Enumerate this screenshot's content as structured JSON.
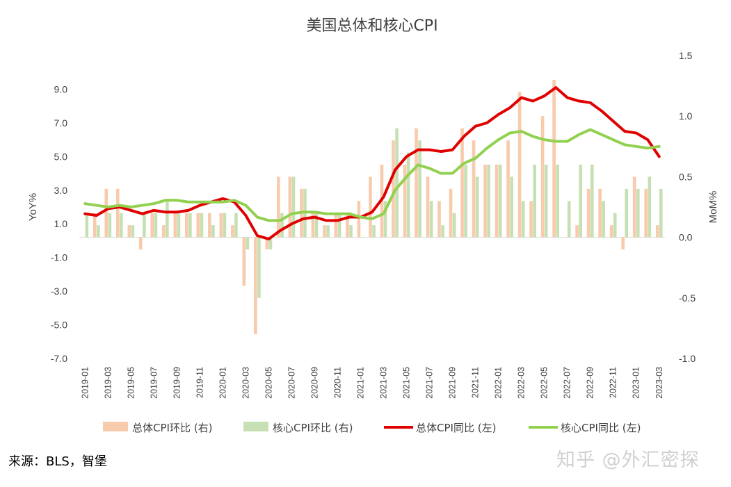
{
  "chart_data": {
    "type": "bar",
    "title": "美国总体和核心CPI",
    "ylabel": "YoY%",
    "y2label": "MoM%",
    "ylim": [
      -7,
      11
    ],
    "y2lim": [
      -1,
      1.5
    ],
    "yticks": [
      "9.0",
      "7.0",
      "5.0",
      "3.0",
      "1.0",
      "-1.0",
      "-3.0",
      "-5.0",
      "-7.0"
    ],
    "y2ticks": [
      "1.5",
      "1.0",
      "0.5",
      "0.0",
      "-0.5",
      "-1.0"
    ],
    "x": [
      "2019-01",
      "2019-02",
      "2019-03",
      "2019-04",
      "2019-05",
      "2019-06",
      "2019-07",
      "2019-08",
      "2019-09",
      "2019-10",
      "2019-11",
      "2019-12",
      "2020-01",
      "2020-02",
      "2020-03",
      "2020-04",
      "2020-05",
      "2020-06",
      "2020-07",
      "2020-08",
      "2020-09",
      "2020-10",
      "2020-11",
      "2020-12",
      "2021-01",
      "2021-02",
      "2021-03",
      "2021-04",
      "2021-05",
      "2021-06",
      "2021-07",
      "2021-08",
      "2021-09",
      "2021-10",
      "2021-11",
      "2021-12",
      "2022-01",
      "2022-02",
      "2022-03",
      "2022-04",
      "2022-05",
      "2022-06",
      "2022-07",
      "2022-08",
      "2022-09",
      "2022-10",
      "2022-11",
      "2022-12",
      "2023-01",
      "2023-02",
      "2023-03"
    ],
    "xtick_labels": [
      "2019-01",
      "2019-03",
      "2019-05",
      "2019-07",
      "2019-09",
      "2019-11",
      "2020-01",
      "2020-03",
      "2020-05",
      "2020-07",
      "2020-09",
      "2020-11",
      "2021-01",
      "2021-03",
      "2021-05",
      "2021-07",
      "2021-09",
      "2021-11",
      "2022-01",
      "2022-03",
      "2022-05",
      "2022-07",
      "2022-09",
      "2022-11",
      "2023-01",
      "2023-03"
    ],
    "series": [
      {
        "name": "总体CPI环比 (右)",
        "kind": "bar",
        "axis": "right",
        "color": "#f8cbad",
        "values": [
          0.0,
          0.2,
          0.4,
          0.4,
          0.1,
          -0.1,
          0.2,
          0.1,
          0.2,
          0.2,
          0.2,
          0.2,
          0.2,
          0.1,
          -0.4,
          -0.8,
          -0.1,
          0.5,
          0.5,
          0.4,
          0.2,
          0.1,
          0.2,
          0.2,
          0.3,
          0.5,
          0.6,
          0.8,
          0.6,
          0.9,
          0.5,
          0.3,
          0.4,
          0.9,
          0.8,
          0.6,
          0.6,
          0.8,
          1.2,
          0.3,
          1.0,
          1.3,
          0.0,
          0.1,
          0.4,
          0.4,
          0.1,
          -0.1,
          0.5,
          0.4,
          0.1
        ]
      },
      {
        "name": "核心CPI环比 (右)",
        "kind": "bar",
        "axis": "right",
        "color": "#c6e0b4",
        "values": [
          0.2,
          0.1,
          0.2,
          0.2,
          0.1,
          0.2,
          0.2,
          0.3,
          0.2,
          0.2,
          0.2,
          0.1,
          0.2,
          0.2,
          -0.1,
          -0.5,
          -0.1,
          0.2,
          0.5,
          0.4,
          0.2,
          0.1,
          0.2,
          0.1,
          0.0,
          0.1,
          0.3,
          0.9,
          0.7,
          0.8,
          0.3,
          0.1,
          0.2,
          0.6,
          0.5,
          0.6,
          0.6,
          0.5,
          0.3,
          0.6,
          0.6,
          0.6,
          0.3,
          0.6,
          0.6,
          0.3,
          0.2,
          0.4,
          0.4,
          0.5,
          0.4
        ]
      },
      {
        "name": "总体CPI同比 (左)",
        "kind": "line",
        "axis": "left",
        "color": "#e00000",
        "values": [
          1.6,
          1.5,
          1.9,
          2.0,
          1.8,
          1.6,
          1.8,
          1.7,
          1.7,
          1.8,
          2.1,
          2.3,
          2.5,
          2.3,
          1.5,
          0.3,
          0.1,
          0.6,
          1.0,
          1.3,
          1.4,
          1.2,
          1.2,
          1.4,
          1.4,
          1.7,
          2.6,
          4.2,
          5.0,
          5.4,
          5.4,
          5.3,
          5.4,
          6.2,
          6.8,
          7.0,
          7.5,
          7.9,
          8.5,
          8.3,
          8.6,
          9.1,
          8.5,
          8.3,
          8.2,
          7.7,
          7.1,
          6.5,
          6.4,
          6.0,
          5.0
        ]
      },
      {
        "name": "核心CPI同比 (左)",
        "kind": "line",
        "axis": "left",
        "color": "#92d050",
        "values": [
          2.2,
          2.1,
          2.0,
          2.1,
          2.0,
          2.1,
          2.2,
          2.4,
          2.4,
          2.3,
          2.3,
          2.3,
          2.3,
          2.4,
          2.1,
          1.4,
          1.2,
          1.2,
          1.6,
          1.7,
          1.7,
          1.6,
          1.6,
          1.6,
          1.4,
          1.3,
          1.6,
          3.0,
          3.8,
          4.5,
          4.3,
          4.0,
          4.0,
          4.6,
          4.9,
          5.5,
          6.0,
          6.4,
          6.5,
          6.2,
          6.0,
          5.9,
          5.9,
          6.3,
          6.6,
          6.3,
          6.0,
          5.7,
          5.6,
          5.5,
          5.6
        ]
      }
    ]
  },
  "footer": {
    "source": "来源：BLS，智堡",
    "watermark": "知乎 @外汇密探"
  }
}
